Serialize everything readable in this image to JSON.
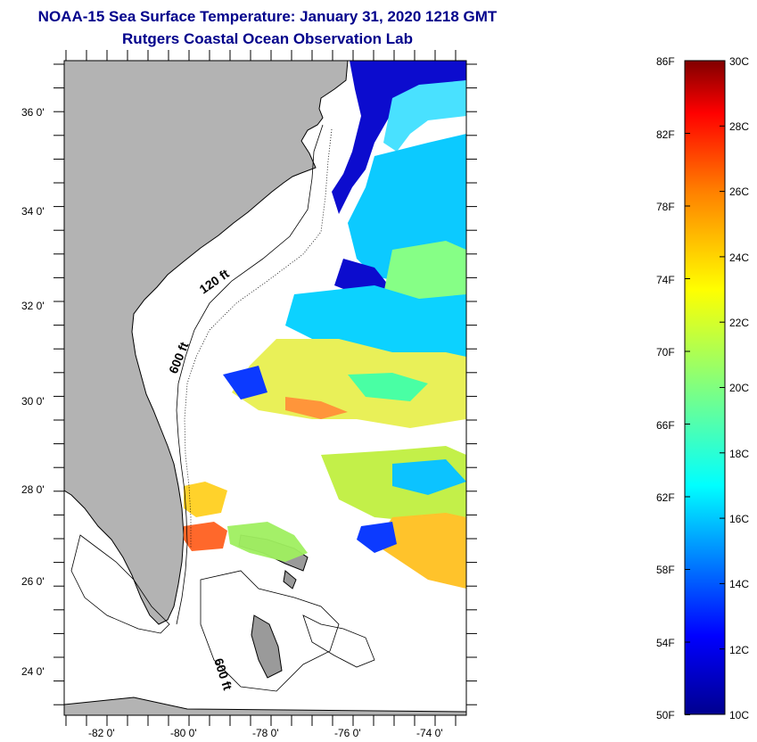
{
  "title": {
    "line1": "NOAA-15 Sea Surface Temperature:  January 31, 2020 1218 GMT",
    "line2": "Rutgers Coastal Ocean Observation Lab"
  },
  "map": {
    "lat_labels": [
      "36 0'",
      "34 0'",
      "32 0'",
      "30 0'",
      "28 0'",
      "26 0'",
      "24 0'"
    ],
    "lon_labels": [
      "-82 0'",
      "-80 0'",
      "-78 0'",
      "-76 0'",
      "-74 0'"
    ],
    "contour_labels": [
      "120 ft",
      "600 ft",
      "600 ft"
    ],
    "colors": {
      "land": "#b3b3b3",
      "ocean_nodata": "#ffffff",
      "outline": "#000000"
    }
  },
  "colorbar": {
    "fahrenheit_labels": [
      "86F",
      "82F",
      "78F",
      "74F",
      "70F",
      "66F",
      "62F",
      "58F",
      "54F",
      "50F"
    ],
    "celsius_labels": [
      "30C",
      "28C",
      "26C",
      "24C",
      "22C",
      "20C",
      "18C",
      "16C",
      "14C",
      "12C",
      "10C"
    ],
    "colormap": [
      "#00008f",
      "#0000ff",
      "#0080ff",
      "#00ffff",
      "#80ff80",
      "#ffff00",
      "#ff8000",
      "#ff0000",
      "#800000"
    ]
  }
}
